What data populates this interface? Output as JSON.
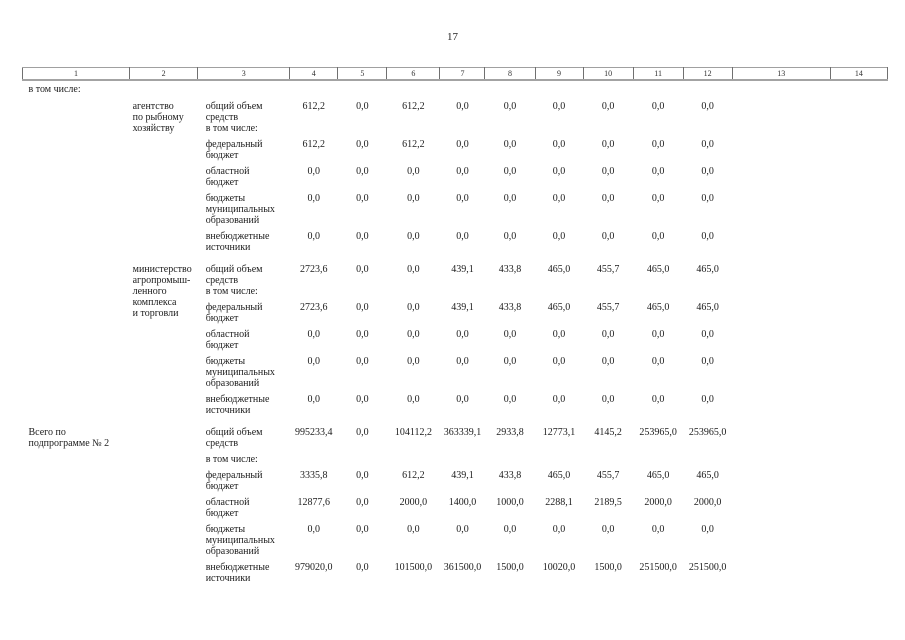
{
  "page": {
    "number": "17"
  },
  "colors": {
    "text": "#1c1c1c",
    "header_border_horizontal": "#a0a0a0",
    "header_border_vertical": "#707070",
    "background": "#ffffff"
  },
  "table": {
    "column_numbers": [
      "1",
      "2",
      "3",
      "4",
      "5",
      "6",
      "7",
      "8",
      "9",
      "10",
      "11",
      "12",
      "13",
      "14"
    ],
    "intro_label": "в том числе:",
    "sections": [
      {
        "col1": "",
        "col2": "агентство\nпо рыбному\nхозяйству",
        "rows": [
          {
            "label": "общий объем\nсредств\nв том числе:",
            "values": [
              "612,2",
              "0,0",
              "612,2",
              "0,0",
              "0,0",
              "0,0",
              "0,0",
              "0,0",
              "0,0"
            ]
          },
          {
            "label": "федеральный\nбюджет",
            "values": [
              "612,2",
              "0,0",
              "612,2",
              "0,0",
              "0,0",
              "0,0",
              "0,0",
              "0,0",
              "0,0"
            ]
          },
          {
            "label": "областной\nбюджет",
            "values": [
              "0,0",
              "0,0",
              "0,0",
              "0,0",
              "0,0",
              "0,0",
              "0,0",
              "0,0",
              "0,0"
            ]
          },
          {
            "label": "бюджеты\nмуниципальных\nобразований",
            "values": [
              "0,0",
              "0,0",
              "0,0",
              "0,0",
              "0,0",
              "0,0",
              "0,0",
              "0,0",
              "0,0"
            ]
          },
          {
            "label": "внебюджетные\nисточники",
            "values": [
              "0,0",
              "0,0",
              "0,0",
              "0,0",
              "0,0",
              "0,0",
              "0,0",
              "0,0",
              "0,0"
            ]
          }
        ]
      },
      {
        "col1": "",
        "col2": "министерство\nагропромыш-\nленного\nкомплекса\nи торговли",
        "rows": [
          {
            "label": "общий объем\nсредств\nв том числе:",
            "values": [
              "2723,6",
              "0,0",
              "0,0",
              "439,1",
              "433,8",
              "465,0",
              "455,7",
              "465,0",
              "465,0"
            ]
          },
          {
            "label": "федеральный\nбюджет",
            "values": [
              "2723,6",
              "0,0",
              "0,0",
              "439,1",
              "433,8",
              "465,0",
              "455,7",
              "465,0",
              "465,0"
            ]
          },
          {
            "label": "областной\nбюджет",
            "values": [
              "0,0",
              "0,0",
              "0,0",
              "0,0",
              "0,0",
              "0,0",
              "0,0",
              "0,0",
              "0,0"
            ]
          },
          {
            "label": "бюджеты\nмуниципальных\nобразований",
            "values": [
              "0,0",
              "0,0",
              "0,0",
              "0,0",
              "0,0",
              "0,0",
              "0,0",
              "0,0",
              "0,0"
            ]
          },
          {
            "label": "внебюджетные\nисточники",
            "values": [
              "0,0",
              "0,0",
              "0,0",
              "0,0",
              "0,0",
              "0,0",
              "0,0",
              "0,0",
              "0,0"
            ]
          }
        ]
      },
      {
        "col1": "Всего по\nподпрограмме № 2",
        "col2": "",
        "rows": [
          {
            "label": "общий объем\nсредств",
            "values": [
              "995233,4",
              "0,0",
              "104112,2",
              "363339,1",
              "2933,8",
              "12773,1",
              "4145,2",
              "253965,0",
              "253965,0"
            ]
          },
          {
            "label": "в том числе:",
            "values": []
          },
          {
            "label": "федеральный\nбюджет",
            "values": [
              "3335,8",
              "0,0",
              "612,2",
              "439,1",
              "433,8",
              "465,0",
              "455,7",
              "465,0",
              "465,0"
            ]
          },
          {
            "label": "областной\nбюджет",
            "values": [
              "12877,6",
              "0,0",
              "2000,0",
              "1400,0",
              "1000,0",
              "2288,1",
              "2189,5",
              "2000,0",
              "2000,0"
            ]
          },
          {
            "label": "бюджеты\nмуниципальных\nобразований",
            "values": [
              "0,0",
              "0,0",
              "0,0",
              "0,0",
              "0,0",
              "0,0",
              "0,0",
              "0,0",
              "0,0"
            ]
          },
          {
            "label": "внебюджетные\nисточники",
            "values": [
              "979020,0",
              "0,0",
              "101500,0",
              "361500,0",
              "1500,0",
              "10020,0",
              "1500,0",
              "251500,0",
              "251500,0"
            ]
          }
        ]
      }
    ]
  }
}
